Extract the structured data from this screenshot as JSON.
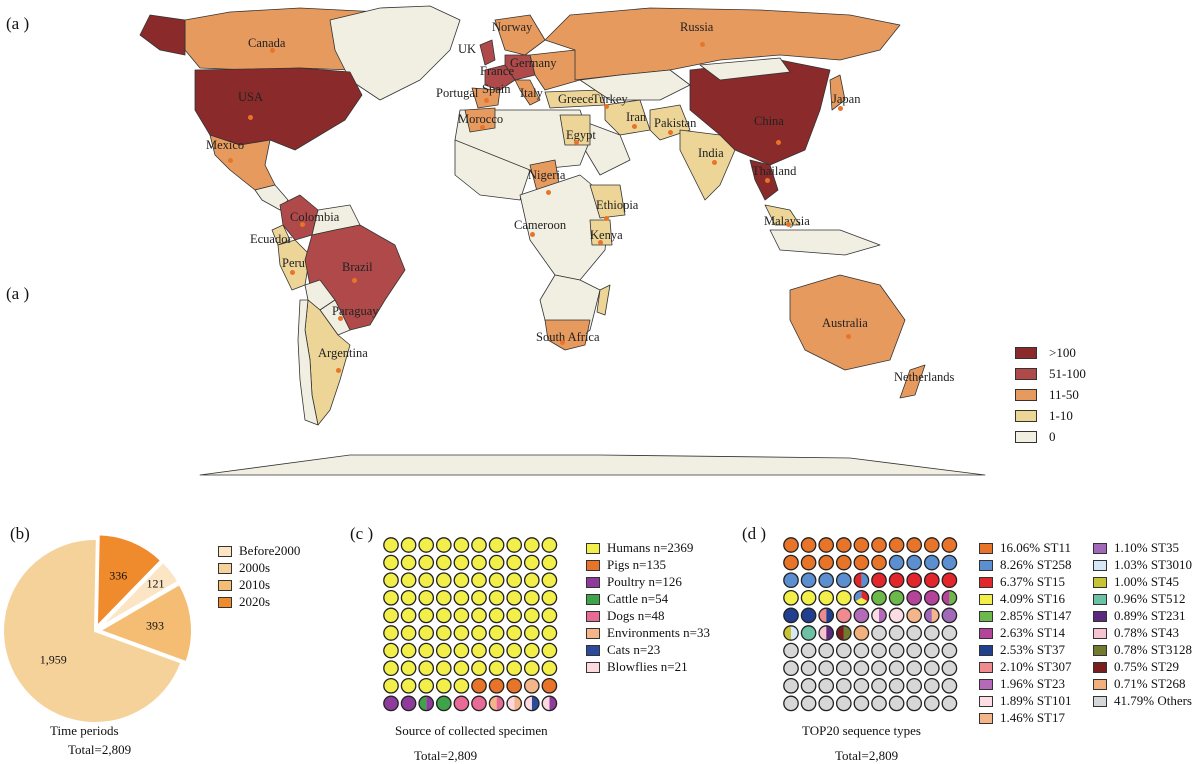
{
  "panel_labels": {
    "a": "(a )",
    "b": "(b)",
    "c": "(c )",
    "d": "(d )"
  },
  "colors": {
    "c_gt100": "#8b2a2a",
    "c_51_100": "#b04a4a",
    "c_11_50": "#e79a5e",
    "c_1_10": "#ecd597",
    "c_0": "#f1efe2",
    "ocean": "#ffffff",
    "border": "#333333"
  },
  "map": {
    "legend": [
      {
        "label": ">100",
        "color": "#8b2a2a"
      },
      {
        "label": "51-100",
        "color": "#b04a4a"
      },
      {
        "label": "11-50",
        "color": "#e79a5e"
      },
      {
        "label": "1-10",
        "color": "#ecd597"
      },
      {
        "label": "0",
        "color": "#f1efe2"
      }
    ],
    "labels": [
      "Canada",
      "Norway",
      "UK",
      "France",
      "Germany",
      "Russia",
      "USA",
      "Portugal",
      "Spain",
      "Italy",
      "Greece",
      "Turkey",
      "Japan",
      "Morocco",
      "Iran",
      "Pakistan",
      "China",
      "Egypt",
      "India",
      "Mexico",
      "Thailand",
      "Nigeria",
      "Ethiopia",
      "Colombia",
      "Cameroon",
      "Malaysia",
      "Ecuador",
      "Kenya",
      "Brazil",
      "Peru",
      "Paraguay",
      "South Africa",
      "Australia",
      "Argentina",
      "Netherlands"
    ]
  },
  "chart_data": [
    {
      "type": "pie",
      "title": "Time periods",
      "total_label": "Total=2,809",
      "categories": [
        "Before2000",
        "2000s",
        "2010s",
        "2020s"
      ],
      "values": [
        121,
        1959,
        393,
        336
      ],
      "value_labels": [
        "121",
        "1,959",
        "393",
        "336"
      ],
      "colors": [
        "#fbe5c4",
        "#f6d29b",
        "#f5bd73",
        "#ef8a2d"
      ],
      "legend_placement": "right"
    },
    {
      "type": "waffle",
      "title": "Source of  collected specimen",
      "total_label": "Total=2,809",
      "grid": [
        10,
        10
      ],
      "series": [
        {
          "name": "Humans n=2369",
          "value": 2369,
          "color": "#f2ee4a"
        },
        {
          "name": "Pigs n=135",
          "value": 135,
          "color": "#e8742a"
        },
        {
          "name": "Poultry n=126",
          "value": 126,
          "color": "#8e3b9c"
        },
        {
          "name": "Cattle n=54",
          "value": 54,
          "color": "#3fa34a"
        },
        {
          "name": "Dogs n=48",
          "value": 48,
          "color": "#e86a96"
        },
        {
          "name": "Environments n=33",
          "value": 33,
          "color": "#f5b58a"
        },
        {
          "name": "Cats n=23",
          "value": 23,
          "color": "#2b4a9b"
        },
        {
          "name": "Blowflies n=21",
          "value": 21,
          "color": "#fbd9df"
        }
      ],
      "legend_placement": "right"
    },
    {
      "type": "waffle",
      "title": "TOP20 sequence types",
      "total_label": "Total=2,809",
      "grid": [
        10,
        10
      ],
      "series": [
        {
          "name": "16.06% ST11",
          "value": 16.06,
          "color": "#e8742a"
        },
        {
          "name": "8.26% ST258",
          "value": 8.26,
          "color": "#5b8fcf"
        },
        {
          "name": "6.37% ST15",
          "value": 6.37,
          "color": "#e3262b"
        },
        {
          "name": "4.09% ST16",
          "value": 4.09,
          "color": "#f2ee4a"
        },
        {
          "name": "2.85% ST147",
          "value": 2.85,
          "color": "#6cb84a"
        },
        {
          "name": "2.63% ST14",
          "value": 2.63,
          "color": "#b4439a"
        },
        {
          "name": "2.53% ST37",
          "value": 2.53,
          "color": "#213f8f"
        },
        {
          "name": "2.10% ST307",
          "value": 2.1,
          "color": "#ef8a8f"
        },
        {
          "name": "1.96% ST23",
          "value": 1.96,
          "color": "#b46ab8"
        },
        {
          "name": "1.89% ST101",
          "value": 1.89,
          "color": "#fcdde3"
        },
        {
          "name": "1.46% ST17",
          "value": 1.46,
          "color": "#f5b58a"
        },
        {
          "name": "1.10% ST35",
          "value": 1.1,
          "color": "#a06ab8"
        },
        {
          "name": "1.03% ST3010",
          "value": 1.03,
          "color": "#d6e8f7"
        },
        {
          "name": "1.00% ST45",
          "value": 1.0,
          "color": "#c8c334"
        },
        {
          "name": "0.96% ST512",
          "value": 0.96,
          "color": "#6cc0a3"
        },
        {
          "name": "0.89% ST231",
          "value": 0.89,
          "color": "#5b2a7d"
        },
        {
          "name": "0.78% ST43",
          "value": 0.78,
          "color": "#f6c3d1"
        },
        {
          "name": "0.78% ST3128",
          "value": 0.78,
          "color": "#727a2f"
        },
        {
          "name": "0.75% ST29",
          "value": 0.75,
          "color": "#7a1d1d"
        },
        {
          "name": "0.71% ST268",
          "value": 0.71,
          "color": "#f3b07c"
        },
        {
          "name": "41.79% Others",
          "value": 41.79,
          "color": "#d7d7d7"
        }
      ],
      "legend_placement": "right"
    }
  ]
}
